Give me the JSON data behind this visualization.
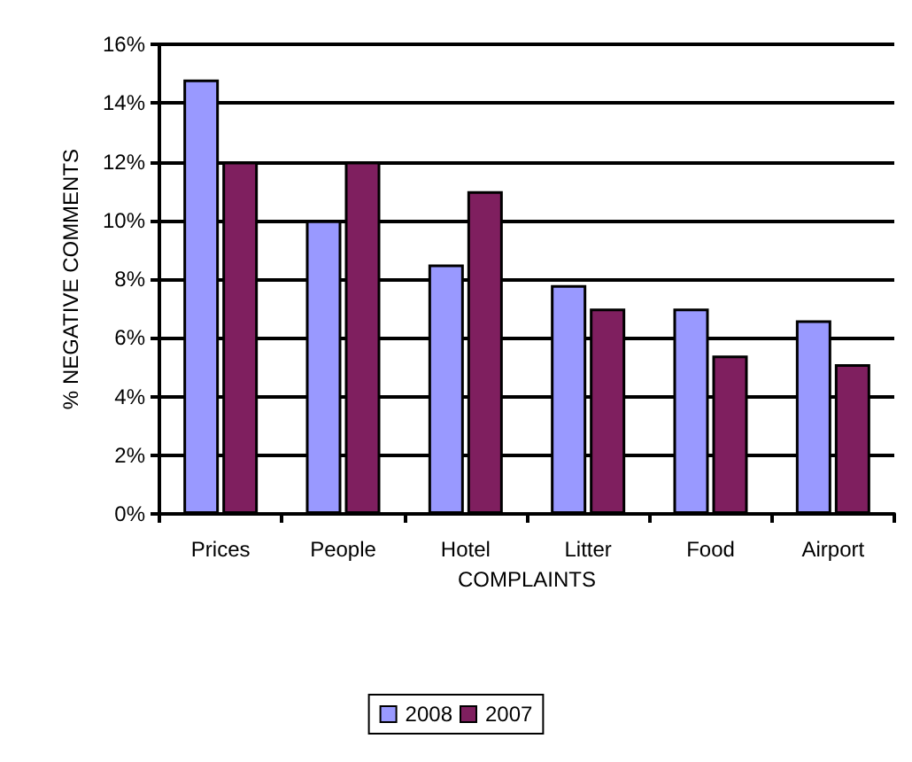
{
  "chart_data": {
    "type": "bar",
    "xlabel": "COMPLAINTS",
    "ylabel": "% NEGATIVE COMMENTS",
    "categories": [
      "Prices",
      "People",
      "Hotel",
      "Litter",
      "Food",
      "Airport"
    ],
    "series": [
      {
        "name": "2008",
        "color": "#9999ff",
        "values": [
          14.8,
          10,
          8.5,
          7.8,
          7.0,
          6.6
        ]
      },
      {
        "name": "2007",
        "color": "#7f1f5f",
        "values": [
          12,
          12,
          11,
          7.0,
          5.4,
          5.1
        ]
      }
    ],
    "ylim": [
      0,
      16
    ],
    "yticks": [
      {
        "value": 0,
        "label": "0%"
      },
      {
        "value": 2,
        "label": "2%"
      },
      {
        "value": 4,
        "label": "4%"
      },
      {
        "value": 6,
        "label": "6%"
      },
      {
        "value": 8,
        "label": "8%"
      },
      {
        "value": 10,
        "label": "10%"
      },
      {
        "value": 12,
        "label": "12%"
      },
      {
        "value": 14,
        "label": "14%"
      },
      {
        "value": 16,
        "label": "16%"
      }
    ],
    "grid": "y",
    "legend": "bottom"
  }
}
